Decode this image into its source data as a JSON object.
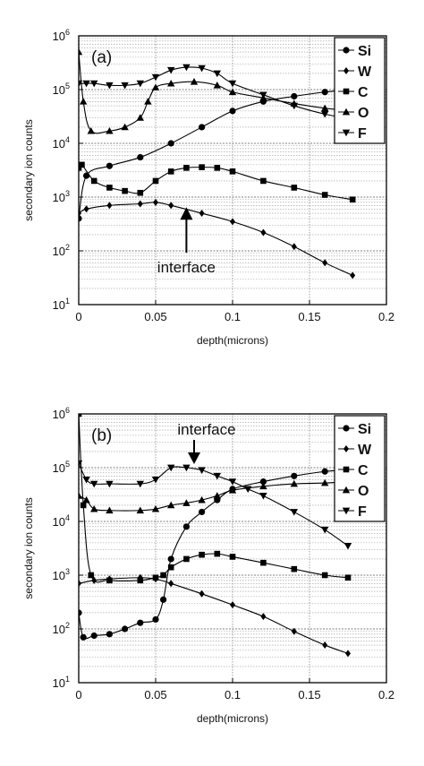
{
  "chart_data": [
    {
      "type": "line",
      "panel_label": "(a)",
      "xlabel": "depth(microns)",
      "ylabel": "secondary ion counts",
      "xlim": [
        0,
        0.2
      ],
      "ylim": [
        10,
        1000000
      ],
      "yscale": "log",
      "x_ticks": [
        "0",
        "0.05",
        "0.1",
        "0.15",
        "0.2"
      ],
      "y_ticks": [
        {
          "base": "10",
          "exp": "1"
        },
        {
          "base": "10",
          "exp": "2"
        },
        {
          "base": "10",
          "exp": "3"
        },
        {
          "base": "10",
          "exp": "4"
        },
        {
          "base": "10",
          "exp": "5"
        },
        {
          "base": "10",
          "exp": "6"
        }
      ],
      "grid": true,
      "legend_position": "top-right",
      "annotation": {
        "text": "interface",
        "x": 0.07,
        "y": 700
      },
      "series": [
        {
          "name": "Si",
          "marker": "circle",
          "x": [
            0,
            0.005,
            0.02,
            0.04,
            0.06,
            0.08,
            0.1,
            0.12,
            0.14,
            0.16,
            0.178
          ],
          "y": [
            400,
            2500,
            3800,
            5500,
            10000,
            20000,
            40000,
            60000,
            75000,
            90000,
            100000
          ]
        },
        {
          "name": "W",
          "marker": "plus",
          "x": [
            0,
            0.005,
            0.02,
            0.04,
            0.05,
            0.06,
            0.08,
            0.1,
            0.12,
            0.14,
            0.16,
            0.178
          ],
          "y": [
            500,
            600,
            700,
            750,
            800,
            700,
            500,
            350,
            220,
            120,
            60,
            35
          ]
        },
        {
          "name": "C",
          "marker": "square",
          "x": [
            0,
            0.002,
            0.01,
            0.02,
            0.03,
            0.04,
            0.05,
            0.06,
            0.07,
            0.08,
            0.09,
            0.1,
            0.12,
            0.14,
            0.16,
            0.178
          ],
          "y": [
            3500,
            4000,
            2000,
            1500,
            1300,
            1200,
            2000,
            3000,
            3500,
            3600,
            3500,
            3000,
            2000,
            1500,
            1100,
            900
          ]
        },
        {
          "name": "O",
          "marker": "triangle-up",
          "x": [
            0,
            0.003,
            0.008,
            0.02,
            0.03,
            0.04,
            0.045,
            0.05,
            0.06,
            0.075,
            0.09,
            0.1,
            0.12,
            0.14,
            0.16,
            0.178
          ],
          "y": [
            500000,
            60000,
            17000,
            17000,
            20000,
            30000,
            60000,
            110000,
            130000,
            140000,
            120000,
            90000,
            70000,
            55000,
            45000,
            40000
          ]
        },
        {
          "name": "F",
          "marker": "triangle-down",
          "x": [
            0,
            0.005,
            0.01,
            0.02,
            0.03,
            0.04,
            0.05,
            0.06,
            0.07,
            0.08,
            0.09,
            0.1,
            0.12,
            0.14,
            0.16,
            0.178
          ],
          "y": [
            130000,
            130000,
            130000,
            120000,
            120000,
            130000,
            170000,
            230000,
            260000,
            250000,
            200000,
            130000,
            80000,
            50000,
            35000,
            28000
          ]
        }
      ]
    },
    {
      "type": "line",
      "panel_label": "(b)",
      "xlabel": "depth(microns)",
      "ylabel": "secondary ion counts",
      "xlim": [
        0,
        0.2
      ],
      "ylim": [
        10,
        1000000
      ],
      "yscale": "log",
      "x_ticks": [
        "0",
        "0.05",
        "0.1",
        "0.15",
        "0.2"
      ],
      "y_ticks": [
        {
          "base": "10",
          "exp": "1"
        },
        {
          "base": "10",
          "exp": "2"
        },
        {
          "base": "10",
          "exp": "3"
        },
        {
          "base": "10",
          "exp": "4"
        },
        {
          "base": "10",
          "exp": "5"
        },
        {
          "base": "10",
          "exp": "6"
        }
      ],
      "grid": true,
      "legend_position": "top-right",
      "annotation": {
        "text": "interface",
        "x": 0.075,
        "y": 100000
      },
      "series": [
        {
          "name": "Si",
          "marker": "circle",
          "x": [
            0,
            0.003,
            0.01,
            0.02,
            0.03,
            0.04,
            0.05,
            0.055,
            0.06,
            0.07,
            0.08,
            0.09,
            0.1,
            0.12,
            0.14,
            0.16,
            0.175
          ],
          "y": [
            200,
            70,
            75,
            80,
            100,
            130,
            150,
            350,
            2000,
            8000,
            15000,
            25000,
            40000,
            55000,
            70000,
            85000,
            90000
          ]
        },
        {
          "name": "W",
          "marker": "plus",
          "x": [
            0,
            0.01,
            0.02,
            0.04,
            0.05,
            0.06,
            0.08,
            0.1,
            0.12,
            0.14,
            0.16,
            0.175
          ],
          "y": [
            700,
            800,
            850,
            900,
            850,
            700,
            450,
            280,
            170,
            90,
            50,
            35
          ]
        },
        {
          "name": "C",
          "marker": "square",
          "x": [
            0,
            0.003,
            0.008,
            0.02,
            0.04,
            0.05,
            0.055,
            0.06,
            0.07,
            0.08,
            0.09,
            0.1,
            0.12,
            0.14,
            0.16,
            0.175
          ],
          "y": [
            1000000,
            20000,
            1000,
            800,
            800,
            900,
            1000,
            1400,
            2000,
            2400,
            2500,
            2200,
            1700,
            1300,
            1000,
            900
          ]
        },
        {
          "name": "O",
          "marker": "triangle-up",
          "x": [
            0,
            0.005,
            0.01,
            0.02,
            0.04,
            0.05,
            0.06,
            0.07,
            0.08,
            0.09,
            0.1,
            0.12,
            0.14,
            0.16,
            0.175
          ],
          "y": [
            30000,
            25000,
            17000,
            16000,
            16000,
            17000,
            20000,
            22000,
            25000,
            30000,
            38000,
            45000,
            50000,
            52000,
            55000
          ]
        },
        {
          "name": "F",
          "marker": "triangle-down",
          "x": [
            0,
            0.005,
            0.01,
            0.02,
            0.04,
            0.05,
            0.06,
            0.07,
            0.08,
            0.09,
            0.1,
            0.11,
            0.12,
            0.14,
            0.16,
            0.175
          ],
          "y": [
            120000,
            60000,
            50000,
            50000,
            50000,
            60000,
            100000,
            100000,
            90000,
            70000,
            55000,
            40000,
            30000,
            15000,
            7000,
            3500
          ]
        }
      ]
    }
  ]
}
